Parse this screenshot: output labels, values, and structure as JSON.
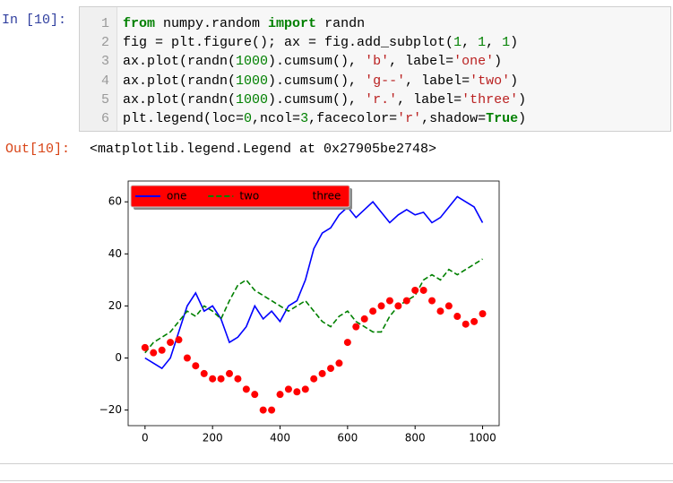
{
  "notebook": {
    "input": {
      "prompt": "In  [10]:",
      "line_numbers": [
        1,
        2,
        3,
        4,
        5,
        6
      ],
      "lines": [
        [
          {
            "text": "from",
            "color": "#008000",
            "bold": true
          },
          {
            "text": " numpy.random ",
            "color": "#000000"
          },
          {
            "text": "import",
            "color": "#008000",
            "bold": true
          },
          {
            "text": " randn",
            "color": "#000000"
          }
        ],
        [
          {
            "text": "fig = plt.figure(); ax = fig.add_subplot(",
            "color": "#000000"
          },
          {
            "text": "1",
            "color": "#008000"
          },
          {
            "text": ", ",
            "color": "#000000"
          },
          {
            "text": "1",
            "color": "#008000"
          },
          {
            "text": ", ",
            "color": "#000000"
          },
          {
            "text": "1",
            "color": "#008000"
          },
          {
            "text": ")",
            "color": "#000000"
          }
        ],
        [
          {
            "text": "ax.plot(randn(",
            "color": "#000000"
          },
          {
            "text": "1000",
            "color": "#008000"
          },
          {
            "text": ").cumsum(), ",
            "color": "#000000"
          },
          {
            "text": "'b'",
            "color": "#ba2121"
          },
          {
            "text": ", label=",
            "color": "#000000"
          },
          {
            "text": "'one'",
            "color": "#ba2121"
          },
          {
            "text": ")",
            "color": "#000000"
          }
        ],
        [
          {
            "text": "ax.plot(randn(",
            "color": "#000000"
          },
          {
            "text": "1000",
            "color": "#008000"
          },
          {
            "text": ").cumsum(), ",
            "color": "#000000"
          },
          {
            "text": "'g--'",
            "color": "#ba2121"
          },
          {
            "text": ", label=",
            "color": "#000000"
          },
          {
            "text": "'two'",
            "color": "#ba2121"
          },
          {
            "text": ")",
            "color": "#000000"
          }
        ],
        [
          {
            "text": "ax.plot(randn(",
            "color": "#000000"
          },
          {
            "text": "1000",
            "color": "#008000"
          },
          {
            "text": ").cumsum(), ",
            "color": "#000000"
          },
          {
            "text": "'r.'",
            "color": "#ba2121"
          },
          {
            "text": ", label=",
            "color": "#000000"
          },
          {
            "text": "'three'",
            "color": "#ba2121"
          },
          {
            "text": ")",
            "color": "#000000"
          }
        ],
        [
          {
            "text": "plt.legend(loc=",
            "color": "#000000"
          },
          {
            "text": "0",
            "color": "#008000"
          },
          {
            "text": ",ncol=",
            "color": "#000000"
          },
          {
            "text": "3",
            "color": "#008000"
          },
          {
            "text": ",facecolor=",
            "color": "#000000"
          },
          {
            "text": "'r'",
            "color": "#ba2121"
          },
          {
            "text": ",shadow=",
            "color": "#000000"
          },
          {
            "text": "True",
            "color": "#008000",
            "bold": true
          },
          {
            "text": ")",
            "color": "#000000"
          }
        ]
      ]
    },
    "output": {
      "prompt": "Out[10]:",
      "text": "<matplotlib.legend.Legend at 0x27905be2748>"
    }
  },
  "chart_data": {
    "type": "line",
    "x": [
      0,
      25,
      50,
      75,
      100,
      125,
      150,
      175,
      200,
      225,
      250,
      275,
      300,
      325,
      350,
      375,
      400,
      425,
      450,
      475,
      500,
      525,
      550,
      575,
      600,
      625,
      650,
      675,
      700,
      725,
      750,
      775,
      800,
      825,
      850,
      875,
      900,
      925,
      950,
      975,
      1000
    ],
    "series": [
      {
        "name": "one",
        "color": "#0000ff",
        "style": "solid",
        "values": [
          0,
          -2,
          -4,
          0,
          10,
          20,
          25,
          18,
          20,
          15,
          6,
          8,
          12,
          20,
          15,
          18,
          14,
          20,
          22,
          30,
          42,
          48,
          50,
          55,
          58,
          54,
          57,
          60,
          56,
          52,
          55,
          57,
          55,
          56,
          52,
          54,
          58,
          62,
          60,
          58,
          52
        ]
      },
      {
        "name": "two",
        "color": "#008000",
        "style": "dashed",
        "values": [
          2,
          6,
          8,
          10,
          14,
          18,
          16,
          20,
          18,
          15,
          22,
          28,
          30,
          26,
          24,
          22,
          20,
          18,
          20,
          22,
          18,
          14,
          12,
          16,
          18,
          14,
          12,
          10,
          10,
          16,
          20,
          22,
          24,
          30,
          32,
          30,
          34,
          32,
          34,
          36,
          38
        ]
      },
      {
        "name": "three",
        "color": "#ff0000",
        "style": "dots",
        "values": [
          4,
          2,
          3,
          6,
          7,
          0,
          -3,
          -6,
          -8,
          -8,
          -6,
          -8,
          -12,
          -14,
          -20,
          -20,
          -14,
          -12,
          -13,
          -12,
          -8,
          -6,
          -4,
          -2,
          6,
          12,
          15,
          18,
          20,
          22,
          20,
          22,
          26,
          26,
          22,
          18,
          20,
          16,
          13,
          14,
          17
        ]
      }
    ],
    "xlim": [
      -50,
      1049
    ],
    "ylim": [
      -26,
      68
    ],
    "xticks": [
      0,
      200,
      400,
      600,
      800,
      1000
    ],
    "yticks": [
      {
        "value": -20,
        "label": "−20"
      },
      0,
      20,
      40,
      60
    ],
    "legend": {
      "loc": "upper left",
      "ncol": 3,
      "facecolor": "#ff0000",
      "shadow": true
    }
  }
}
